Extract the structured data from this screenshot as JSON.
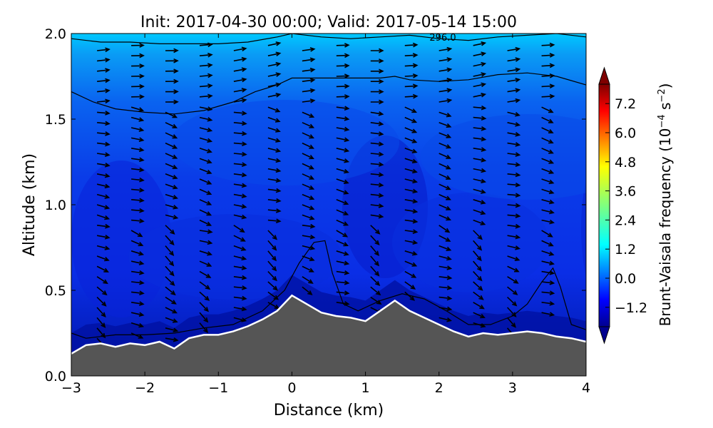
{
  "chart_data": {
    "type": "heatmap",
    "title": "Init: 2017-04-30 00:00; Valid: 2017-05-14 15:00",
    "xlabel": "Distance (km)",
    "ylabel": "Altitude (km)",
    "xlim": [
      -3,
      4
    ],
    "ylim": [
      0.0,
      2.0
    ],
    "x_ticks": [
      -3,
      -2,
      -1,
      0,
      1,
      2,
      3,
      4
    ],
    "x_tick_labels": [
      "−3",
      "−2",
      "−1",
      "0",
      "1",
      "2",
      "3",
      "4"
    ],
    "y_ticks": [
      0.0,
      0.5,
      1.0,
      1.5,
      2.0
    ],
    "y_tick_labels": [
      "0.0",
      "0.5",
      "1.0",
      "1.5",
      "2.0"
    ],
    "colorbar": {
      "label": "Brunt-Vaisala frequency (10⁻⁴ s⁻²)",
      "label_main": "Brunt-Vaisala frequency (10",
      "label_exp1": "−4",
      "label_mid": " s",
      "label_exp2": "−2",
      "label_end": ")",
      "colormap": "jet",
      "extend": "both",
      "range": [
        -2.0,
        8.0
      ],
      "ticks": [
        -1.2,
        0.0,
        1.2,
        2.4,
        3.6,
        4.8,
        6.0,
        7.2
      ],
      "tick_labels": [
        "−1.2",
        "0.0",
        "1.2",
        "2.4",
        "3.6",
        "4.8",
        "6.0",
        "7.2"
      ]
    },
    "contour_label": "296.0",
    "terrain": {
      "x": [
        -3.0,
        -2.8,
        -2.6,
        -2.4,
        -2.2,
        -2.0,
        -1.8,
        -1.6,
        -1.4,
        -1.2,
        -1.0,
        -0.8,
        -0.6,
        -0.4,
        -0.2,
        0.0,
        0.2,
        0.4,
        0.6,
        0.8,
        1.0,
        1.2,
        1.4,
        1.6,
        1.8,
        2.0,
        2.2,
        2.4,
        2.6,
        2.8,
        3.0,
        3.2,
        3.4,
        3.6,
        3.8,
        4.0
      ],
      "y": [
        0.13,
        0.18,
        0.19,
        0.17,
        0.19,
        0.18,
        0.2,
        0.16,
        0.22,
        0.24,
        0.24,
        0.26,
        0.29,
        0.33,
        0.38,
        0.47,
        0.42,
        0.37,
        0.35,
        0.34,
        0.32,
        0.38,
        0.44,
        0.38,
        0.34,
        0.3,
        0.26,
        0.23,
        0.25,
        0.24,
        0.25,
        0.26,
        0.25,
        0.23,
        0.22,
        0.2
      ]
    },
    "contours": [
      {
        "x": [
          -3.0,
          -2.8,
          -2.4,
          -2.0,
          -1.6,
          -1.2,
          -0.8,
          -0.4,
          -0.1,
          0.1,
          0.3,
          0.45,
          0.55,
          0.7,
          0.9,
          1.2,
          1.5,
          1.8,
          2.1,
          2.4,
          2.7,
          3.0,
          3.2,
          3.4,
          3.55,
          3.65,
          3.8,
          4.0
        ],
        "y": [
          0.25,
          0.22,
          0.24,
          0.24,
          0.25,
          0.28,
          0.3,
          0.38,
          0.5,
          0.66,
          0.78,
          0.79,
          0.6,
          0.42,
          0.38,
          0.44,
          0.48,
          0.45,
          0.38,
          0.3,
          0.3,
          0.35,
          0.42,
          0.55,
          0.63,
          0.52,
          0.3,
          0.27
        ]
      },
      {
        "x": [
          -3.0,
          -2.7,
          -2.4,
          -2.0,
          -1.6,
          -1.2,
          -0.8,
          -0.5,
          -0.2,
          0.0,
          0.4,
          0.8,
          1.2,
          1.4,
          1.6,
          2.0,
          2.4,
          2.8,
          3.2,
          3.6,
          4.0
        ],
        "y": [
          1.66,
          1.6,
          1.56,
          1.54,
          1.53,
          1.55,
          1.6,
          1.66,
          1.7,
          1.74,
          1.74,
          1.74,
          1.74,
          1.75,
          1.73,
          1.72,
          1.73,
          1.76,
          1.77,
          1.75,
          1.7
        ]
      },
      {
        "x": [
          -3.0,
          -2.6,
          -2.2,
          -1.8,
          -1.4,
          -1.0,
          -0.6,
          -0.2,
          0.0,
          0.4,
          0.8,
          1.2,
          1.6,
          2.0,
          2.4,
          2.8,
          3.2,
          3.6,
          4.0
        ],
        "y": [
          1.97,
          1.95,
          1.95,
          1.94,
          1.94,
          1.94,
          1.95,
          1.98,
          2.0,
          1.98,
          1.97,
          1.98,
          1.99,
          1.97,
          1.96,
          1.98,
          1.99,
          2.0,
          1.98
        ]
      }
    ]
  }
}
